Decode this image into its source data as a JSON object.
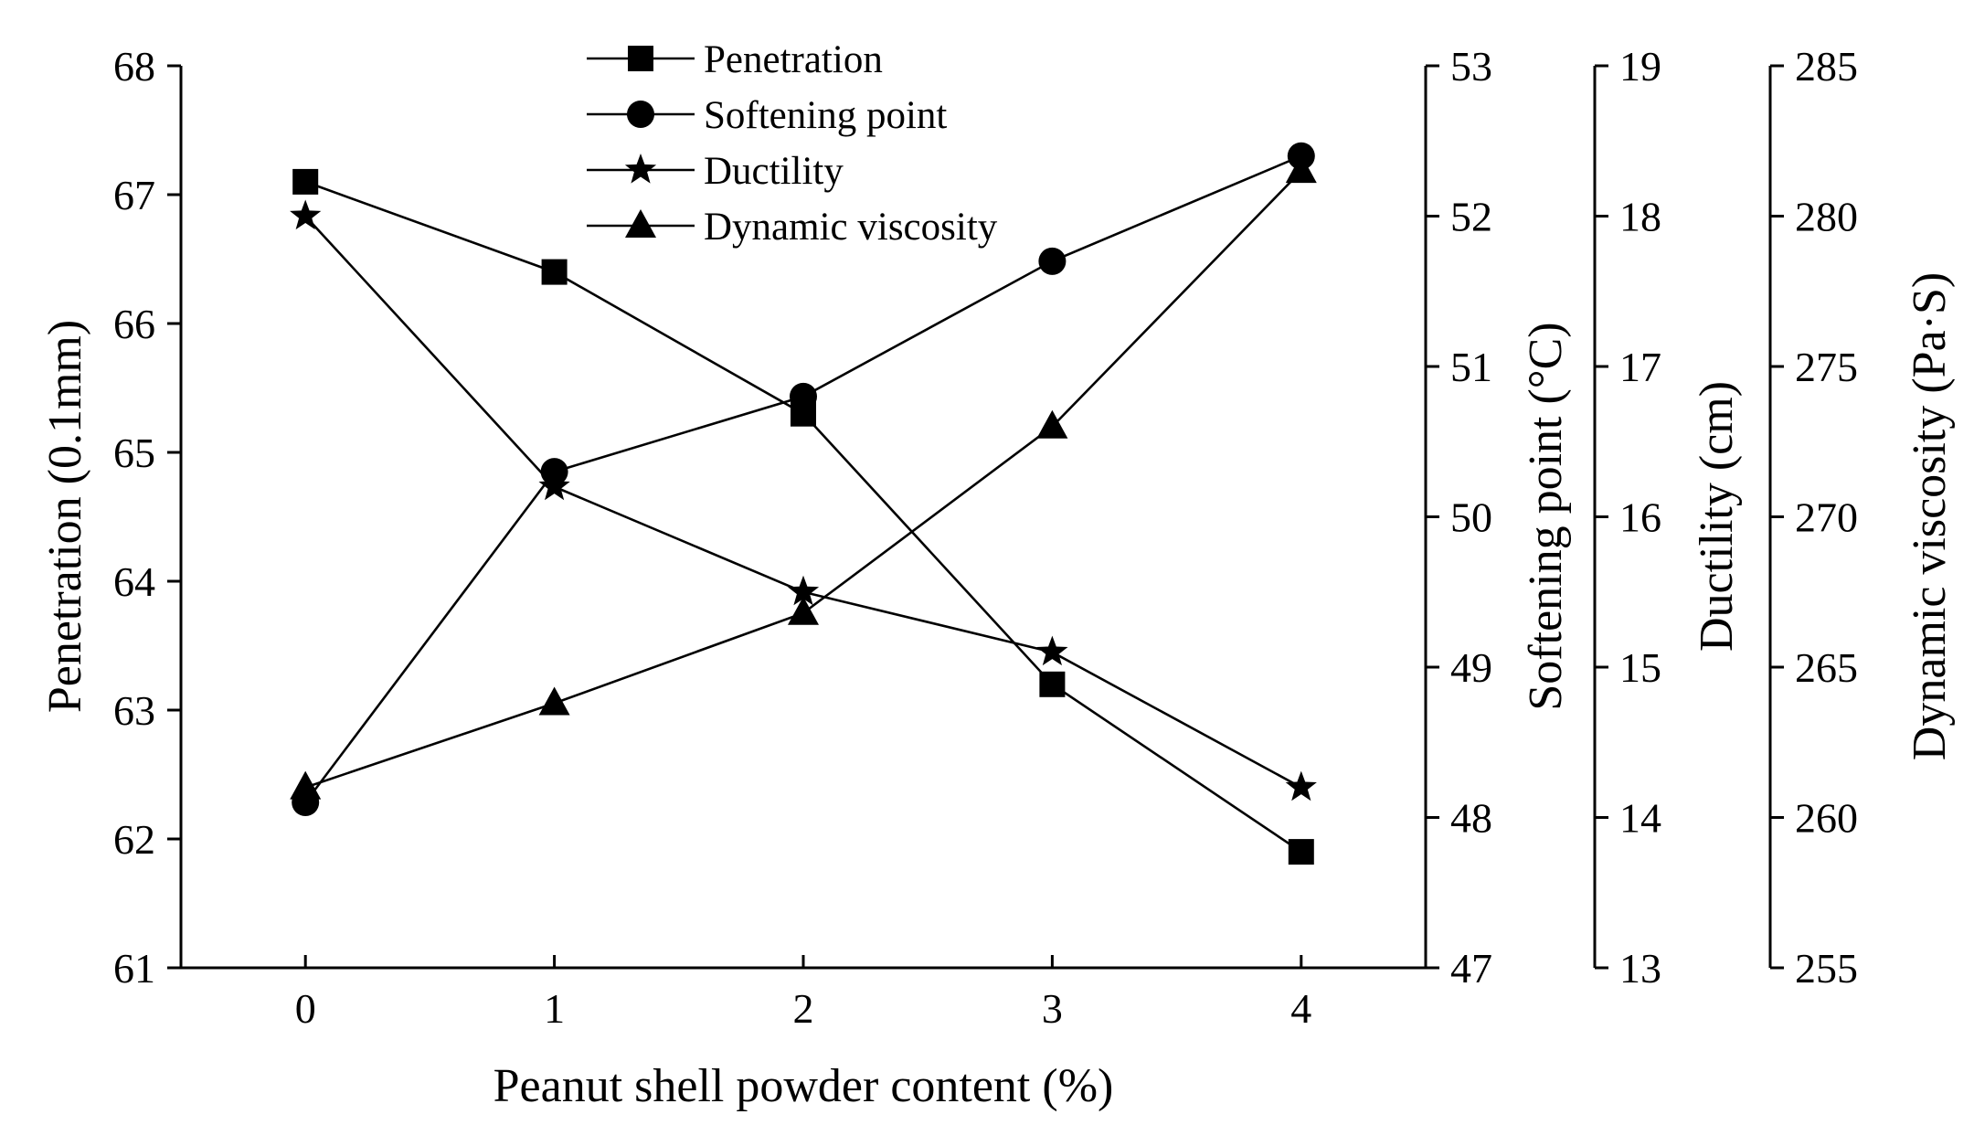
{
  "chart_data": {
    "type": "line",
    "title": "",
    "x": [
      0,
      1,
      2,
      3,
      4
    ],
    "xlabel": "Peanut shell powder content (%)",
    "xlim": [
      -0.5,
      4.5
    ],
    "x_ticks": [
      "0",
      "1",
      "2",
      "3",
      "4"
    ],
    "axes": [
      {
        "id": "penetration",
        "label": "Penetration (0.1mm)",
        "ylim": [
          61,
          68
        ],
        "ticks": [
          "61",
          "62",
          "63",
          "64",
          "65",
          "66",
          "67",
          "68"
        ],
        "position": "left"
      },
      {
        "id": "softening",
        "label": "Softening point (°C)",
        "ylim": [
          47,
          53
        ],
        "ticks": [
          "47",
          "48",
          "49",
          "50",
          "51",
          "52",
          "53"
        ],
        "position": "right"
      },
      {
        "id": "ductility",
        "label": "Ductility (cm)",
        "ylim": [
          13,
          19
        ],
        "ticks": [
          "13",
          "14",
          "15",
          "16",
          "17",
          "18",
          "19"
        ],
        "position": "right"
      },
      {
        "id": "viscosity",
        "label": "Dynamic viscosity (Pa·S)",
        "ylim": [
          255,
          285
        ],
        "ticks": [
          "255",
          "260",
          "265",
          "270",
          "275",
          "280",
          "285"
        ],
        "position": "right"
      }
    ],
    "series": [
      {
        "name": "Penetration",
        "axis": "penetration",
        "marker": "square",
        "values": [
          67.1,
          66.4,
          65.3,
          63.2,
          61.9
        ]
      },
      {
        "name": "Softening point",
        "axis": "softening",
        "marker": "circle",
        "values": [
          48.1,
          50.3,
          50.8,
          51.7,
          52.4
        ]
      },
      {
        "name": "Ductility",
        "axis": "ductility",
        "marker": "star",
        "values": [
          18.0,
          16.2,
          15.5,
          15.1,
          14.2
        ]
      },
      {
        "name": "Dynamic viscosity",
        "axis": "viscosity",
        "marker": "triangle",
        "values": [
          261.0,
          263.8,
          266.8,
          273.0,
          281.5
        ]
      }
    ],
    "legend_position": "top-center",
    "grid": false
  }
}
